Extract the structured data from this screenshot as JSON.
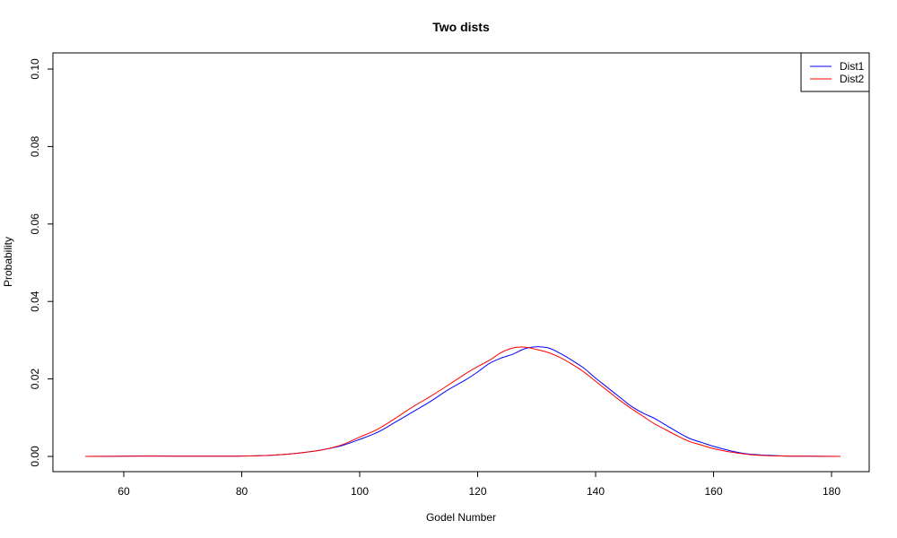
{
  "chart_data": {
    "type": "line",
    "title": "Two dists",
    "xlabel": "Godel Number",
    "ylabel": "Probability",
    "xlim": [
      53,
      182
    ],
    "ylim": [
      0.0,
      0.1
    ],
    "x_ticks": [
      60,
      80,
      100,
      120,
      140,
      160,
      180
    ],
    "x_tick_labels": [
      "60",
      "80",
      "100",
      "120",
      "140",
      "160",
      "180"
    ],
    "y_ticks": [
      0.0,
      0.02,
      0.04,
      0.06,
      0.08,
      0.1
    ],
    "y_tick_labels": [
      "0.00",
      "0.02",
      "0.04",
      "0.06",
      "0.08",
      "0.10"
    ],
    "grid": false,
    "legend_position": "top-right",
    "series": [
      {
        "name": "Dist1",
        "color": "#0000ff",
        "x": [
          53.5,
          60,
          65,
          70,
          75,
          80,
          85,
          88,
          91,
          94,
          97,
          100,
          103,
          106,
          109,
          112,
          115,
          118,
          120,
          122,
          124,
          126,
          128,
          130,
          132,
          134,
          136,
          138,
          140,
          142,
          144,
          146,
          148,
          150,
          152,
          154,
          156,
          158,
          160,
          163,
          166,
          169,
          172,
          176,
          181.5
        ],
        "y": [
          0.0,
          5e-05,
          0.0001,
          5e-05,
          5e-05,
          0.0001,
          0.0003,
          0.0006,
          0.0011,
          0.0018,
          0.0028,
          0.0044,
          0.0062,
          0.0088,
          0.0115,
          0.0142,
          0.0172,
          0.0198,
          0.0218,
          0.024,
          0.0254,
          0.0264,
          0.0278,
          0.0283,
          0.028,
          0.0266,
          0.0248,
          0.0228,
          0.0202,
          0.0178,
          0.0154,
          0.013,
          0.0112,
          0.0098,
          0.008,
          0.0062,
          0.0046,
          0.0036,
          0.0026,
          0.0014,
          0.0006,
          0.0003,
          0.0001,
          5e-05,
          0.0
        ]
      },
      {
        "name": "Dist2",
        "color": "#ff0000",
        "x": [
          53.5,
          60,
          65,
          70,
          75,
          80,
          85,
          88,
          91,
          94,
          97,
          100,
          103,
          106,
          109,
          112,
          115,
          118,
          120,
          122,
          124,
          126,
          128,
          130,
          132,
          134,
          136,
          138,
          140,
          142,
          144,
          146,
          148,
          150,
          152,
          154,
          156,
          158,
          160,
          163,
          166,
          169,
          172,
          176,
          181.5
        ],
        "y": [
          0.0,
          5e-05,
          0.0001,
          5e-05,
          5e-05,
          0.0001,
          0.0003,
          0.0006,
          0.0011,
          0.0018,
          0.003,
          0.005,
          0.007,
          0.0098,
          0.0128,
          0.0155,
          0.0184,
          0.0214,
          0.0232,
          0.0248,
          0.0268,
          0.028,
          0.0282,
          0.0276,
          0.0268,
          0.0255,
          0.0238,
          0.0218,
          0.0194,
          0.017,
          0.0146,
          0.0124,
          0.0104,
          0.0084,
          0.0068,
          0.0052,
          0.0038,
          0.0029,
          0.002,
          0.0011,
          0.0005,
          0.0002,
          0.0001,
          5e-05,
          0.0
        ]
      }
    ]
  }
}
